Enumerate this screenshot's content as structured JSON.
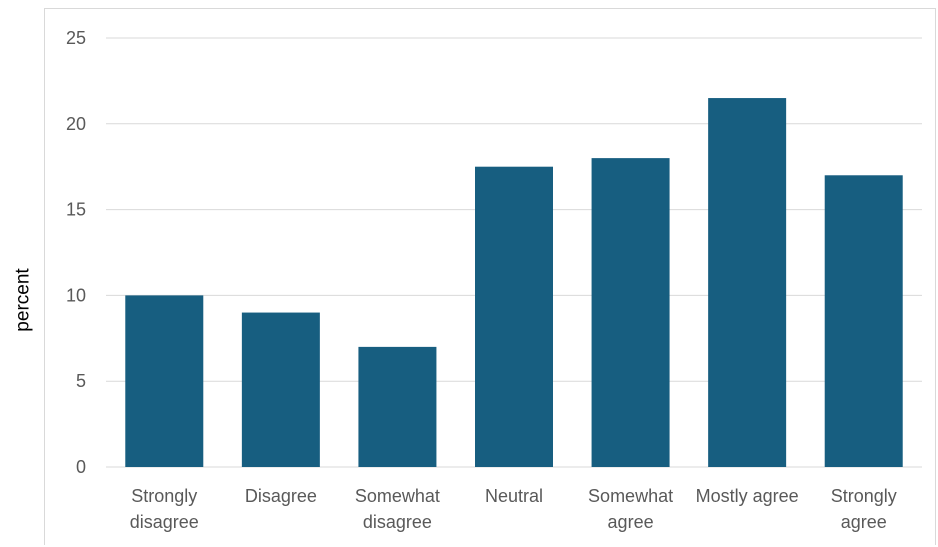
{
  "chart_data": {
    "type": "bar",
    "title": "",
    "xlabel": "",
    "ylabel": "percent",
    "ylim": [
      0,
      25
    ],
    "yticks": [
      "0",
      "5",
      "10",
      "15",
      "20",
      "25"
    ],
    "grid": true,
    "legend": "none",
    "bar_color": "#175e80",
    "categories": [
      [
        "Strongly",
        "disagree"
      ],
      [
        "Disagree"
      ],
      [
        "Somewhat",
        "disagree"
      ],
      [
        "Neutral"
      ],
      [
        "Somewhat",
        "agree"
      ],
      [
        "Mostly agree"
      ],
      [
        "Strongly",
        "agree"
      ]
    ],
    "values": [
      10,
      9,
      7,
      17.5,
      18,
      21.5,
      17
    ]
  }
}
